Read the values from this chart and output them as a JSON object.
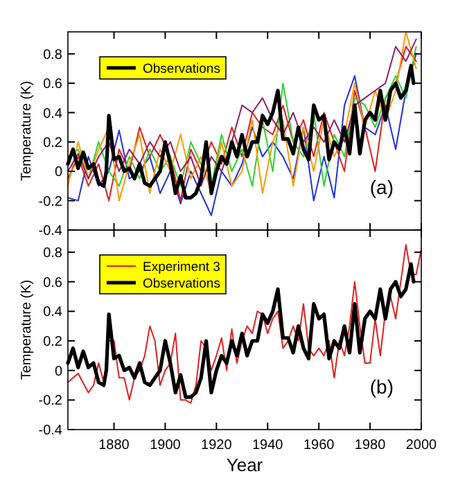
{
  "chart_data": [
    {
      "type": "line",
      "ylabel": "Temperature (K)",
      "annotations": [
        "(a)"
      ],
      "xlim": [
        1862,
        2000
      ],
      "xticks": [
        1880,
        1900,
        1920,
        1940,
        1960,
        1980,
        2000
      ],
      "ylim": [
        -0.4,
        0.95
      ],
      "yticks": [
        -0.4,
        -0.2,
        0,
        0.2,
        0.4,
        0.6,
        0.8
      ],
      "tick_labels": "y",
      "legend": "top left",
      "grid": false,
      "series": [
        {
          "color": "#2030e0",
          "x": [
            1862,
            1866,
            1870,
            1874,
            1878,
            1882,
            1886,
            1890,
            1894,
            1898,
            1902,
            1906,
            1910,
            1914,
            1918,
            1922,
            1926,
            1930,
            1934,
            1938,
            1942,
            1946,
            1950,
            1954,
            1958,
            1962,
            1966,
            1970,
            1974,
            1978,
            1982,
            1986,
            1990,
            1994,
            1998
          ],
          "values": [
            -0.18,
            -0.2,
            0.1,
            -0.1,
            0.0,
            0.28,
            -0.05,
            0.0,
            0.1,
            -0.15,
            0.0,
            -0.22,
            0.0,
            -0.15,
            -0.3,
            0.0,
            -0.1,
            0.05,
            0.3,
            0.1,
            0.2,
            0.1,
            -0.05,
            0.3,
            -0.2,
            0.1,
            -0.18,
            0.45,
            0.65,
            0.3,
            0.25,
            0.45,
            0.15,
            0.55,
            0.8
          ]
        },
        {
          "color": "#e02020",
          "x": [
            1862,
            1866,
            1870,
            1874,
            1878,
            1882,
            1886,
            1890,
            1894,
            1898,
            1902,
            1906,
            1910,
            1914,
            1918,
            1922,
            1926,
            1930,
            1934,
            1938,
            1942,
            1946,
            1950,
            1954,
            1958,
            1962,
            1966,
            1970,
            1974,
            1978,
            1982,
            1986,
            1990,
            1994,
            1998
          ],
          "values": [
            -0.05,
            0.1,
            -0.1,
            0.05,
            -0.2,
            0.15,
            0.0,
            0.3,
            0.1,
            0.25,
            0.1,
            -0.2,
            0.15,
            0.0,
            0.2,
            0.05,
            0.3,
            0.1,
            0.4,
            0.3,
            0.25,
            0.45,
            0.2,
            0.35,
            0.1,
            0.4,
            0.2,
            0.0,
            0.55,
            0.3,
            0.0,
            0.5,
            0.6,
            0.85,
            0.75
          ]
        },
        {
          "color": "#30d030",
          "x": [
            1862,
            1866,
            1870,
            1874,
            1878,
            1882,
            1886,
            1890,
            1894,
            1898,
            1902,
            1906,
            1910,
            1914,
            1918,
            1922,
            1926,
            1930,
            1934,
            1938,
            1942,
            1946,
            1950,
            1954,
            1958,
            1962,
            1966,
            1970,
            1974,
            1978,
            1982,
            1986,
            1990,
            1994,
            1998
          ],
          "values": [
            0.1,
            0.15,
            -0.05,
            0.2,
            0.0,
            -0.1,
            0.1,
            -0.05,
            0.15,
            0.0,
            0.1,
            -0.1,
            0.2,
            0.05,
            -0.1,
            0.25,
            0.0,
            0.15,
            -0.1,
            0.35,
            0.0,
            0.6,
            0.2,
            0.1,
            0.4,
            -0.1,
            0.25,
            0.1,
            0.5,
            0.45,
            0.3,
            0.5,
            0.65,
            0.5,
            0.85
          ]
        },
        {
          "color": "#ff9900",
          "x": [
            1862,
            1866,
            1870,
            1874,
            1878,
            1882,
            1886,
            1890,
            1894,
            1898,
            1902,
            1906,
            1910,
            1914,
            1918,
            1922,
            1926,
            1930,
            1934,
            1938,
            1942,
            1946,
            1950,
            1954,
            1958,
            1962,
            1966,
            1970,
            1974,
            1978,
            1982,
            1986,
            1990,
            1994,
            1998
          ],
          "values": [
            -0.1,
            0.2,
            -0.05,
            0.15,
            0.3,
            -0.2,
            0.05,
            0.25,
            -0.15,
            0.15,
            0.0,
            0.25,
            -0.05,
            0.1,
            -0.15,
            0.2,
            -0.1,
            0.0,
            0.35,
            -0.15,
            0.2,
            0.35,
            -0.1,
            0.3,
            0.0,
            0.35,
            0.1,
            0.25,
            0.6,
            0.3,
            0.55,
            0.35,
            0.55,
            0.95,
            0.7
          ]
        },
        {
          "color": "#902060",
          "x": [
            1862,
            1866,
            1870,
            1874,
            1878,
            1882,
            1886,
            1890,
            1894,
            1898,
            1902,
            1906,
            1910,
            1914,
            1918,
            1922,
            1926,
            1930,
            1934,
            1938,
            1942,
            1946,
            1950,
            1954,
            1958,
            1962,
            1966,
            1970,
            1974,
            1978,
            1982,
            1986,
            1990,
            1994,
            1998
          ],
          "values": [
            0.0,
            0.12,
            -0.05,
            0.1,
            0.2,
            0.0,
            0.15,
            0.05,
            0.2,
            0.1,
            0.2,
            0.0,
            0.1,
            -0.1,
            0.1,
            0.0,
            0.2,
            0.45,
            0.4,
            0.5,
            0.35,
            0.25,
            0.4,
            0.2,
            0.3,
            0.2,
            0.35,
            0.2,
            0.45,
            0.5,
            0.55,
            0.6,
            0.85,
            0.75,
            0.9
          ]
        },
        {
          "name": "Observations",
          "color": "#000000",
          "x": [
            1862,
            1864,
            1866,
            1868,
            1870,
            1872,
            1874,
            1876,
            1877,
            1878,
            1880,
            1882,
            1884,
            1886,
            1888,
            1890,
            1892,
            1894,
            1896,
            1898,
            1900,
            1902,
            1904,
            1906,
            1908,
            1910,
            1912,
            1914,
            1916,
            1918,
            1920,
            1922,
            1924,
            1926,
            1928,
            1930,
            1932,
            1934,
            1936,
            1938,
            1940,
            1942,
            1944,
            1946,
            1948,
            1950,
            1952,
            1954,
            1956,
            1958,
            1960,
            1962,
            1964,
            1966,
            1968,
            1970,
            1972,
            1974,
            1976,
            1978,
            1980,
            1982,
            1984,
            1986,
            1988,
            1990,
            1992,
            1994,
            1996,
            1997
          ],
          "values": [
            0.05,
            0.15,
            0.02,
            0.13,
            0.02,
            0.05,
            -0.08,
            -0.1,
            0.0,
            0.38,
            0.08,
            0.1,
            0.0,
            0.02,
            -0.05,
            0.05,
            -0.08,
            -0.1,
            -0.05,
            0.0,
            0.2,
            0.05,
            -0.15,
            -0.03,
            -0.18,
            -0.18,
            -0.15,
            -0.05,
            0.2,
            -0.15,
            0.0,
            0.1,
            0.05,
            0.2,
            0.1,
            0.25,
            0.1,
            0.2,
            0.2,
            0.38,
            0.32,
            0.4,
            0.55,
            0.22,
            0.22,
            0.12,
            0.3,
            0.15,
            0.08,
            0.45,
            0.35,
            0.38,
            0.08,
            0.2,
            0.15,
            0.3,
            0.12,
            0.45,
            0.12,
            0.35,
            0.4,
            0.35,
            0.55,
            0.35,
            0.55,
            0.6,
            0.5,
            0.55,
            0.72,
            0.6
          ]
        }
      ]
    },
    {
      "type": "line",
      "xlabel": "Year",
      "ylabel": "Temperature (K)",
      "annotations": [
        "(b)"
      ],
      "xlim": [
        1862,
        2000
      ],
      "xticks": [
        1880,
        1900,
        1920,
        1940,
        1960,
        1980,
        2000
      ],
      "ylim": [
        -0.4,
        0.95
      ],
      "yticks": [
        -0.4,
        -0.2,
        0,
        0.2,
        0.4,
        0.6,
        0.8
      ],
      "legend": "top left",
      "grid": false,
      "series": [
        {
          "name": "Experiment 3",
          "color": "#e02020",
          "x": [
            1862,
            1866,
            1870,
            1872,
            1874,
            1876,
            1878,
            1880,
            1882,
            1884,
            1886,
            1888,
            1890,
            1892,
            1894,
            1896,
            1898,
            1900,
            1902,
            1904,
            1906,
            1908,
            1910,
            1912,
            1914,
            1916,
            1918,
            1920,
            1922,
            1924,
            1926,
            1928,
            1930,
            1932,
            1934,
            1936,
            1938,
            1940,
            1942,
            1944,
            1946,
            1948,
            1950,
            1952,
            1954,
            1956,
            1958,
            1960,
            1962,
            1964,
            1966,
            1968,
            1970,
            1972,
            1974,
            1976,
            1978,
            1980,
            1982,
            1984,
            1986,
            1988,
            1990,
            1992,
            1994,
            1996,
            1998,
            2000
          ],
          "values": [
            -0.08,
            -0.02,
            -0.15,
            -0.1,
            0.05,
            -0.08,
            0.2,
            0.2,
            -0.05,
            -0.05,
            -0.2,
            -0.05,
            0.0,
            0.1,
            0.3,
            0.2,
            -0.1,
            0.0,
            0.05,
            0.25,
            -0.2,
            -0.2,
            -0.22,
            -0.1,
            0.2,
            0.15,
            0.0,
            0.1,
            0.22,
            0.0,
            0.28,
            0.05,
            0.2,
            0.3,
            0.25,
            0.4,
            0.38,
            0.25,
            0.35,
            0.4,
            0.15,
            0.2,
            0.3,
            0.2,
            0.45,
            0.15,
            0.1,
            0.15,
            0.1,
            0.2,
            -0.05,
            0.2,
            0.1,
            0.3,
            0.6,
            0.3,
            0.05,
            0.05,
            0.35,
            0.1,
            0.4,
            0.5,
            0.35,
            0.6,
            0.85,
            0.65,
            0.65,
            0.82
          ]
        },
        {
          "name": "Observations",
          "color": "#000000",
          "x": [
            1862,
            1864,
            1866,
            1868,
            1870,
            1872,
            1874,
            1876,
            1877,
            1878,
            1880,
            1882,
            1884,
            1886,
            1888,
            1890,
            1892,
            1894,
            1896,
            1898,
            1900,
            1902,
            1904,
            1906,
            1908,
            1910,
            1912,
            1914,
            1916,
            1918,
            1920,
            1922,
            1924,
            1926,
            1928,
            1930,
            1932,
            1934,
            1936,
            1938,
            1940,
            1942,
            1944,
            1946,
            1948,
            1950,
            1952,
            1954,
            1956,
            1958,
            1960,
            1962,
            1964,
            1966,
            1968,
            1970,
            1972,
            1974,
            1976,
            1978,
            1980,
            1982,
            1984,
            1986,
            1988,
            1990,
            1992,
            1994,
            1996,
            1997
          ],
          "values": [
            0.05,
            0.15,
            0.02,
            0.13,
            0.02,
            0.05,
            -0.08,
            -0.1,
            0.0,
            0.38,
            0.08,
            0.1,
            0.0,
            0.02,
            -0.05,
            0.05,
            -0.08,
            -0.1,
            -0.05,
            0.0,
            0.2,
            0.05,
            -0.15,
            -0.03,
            -0.18,
            -0.18,
            -0.15,
            -0.05,
            0.2,
            -0.15,
            0.0,
            0.1,
            0.05,
            0.2,
            0.1,
            0.25,
            0.1,
            0.2,
            0.2,
            0.38,
            0.32,
            0.4,
            0.55,
            0.22,
            0.22,
            0.12,
            0.3,
            0.15,
            0.08,
            0.45,
            0.35,
            0.38,
            0.08,
            0.2,
            0.15,
            0.3,
            0.12,
            0.45,
            0.12,
            0.35,
            0.4,
            0.35,
            0.55,
            0.35,
            0.55,
            0.6,
            0.5,
            0.55,
            0.72,
            0.6
          ]
        }
      ]
    }
  ]
}
